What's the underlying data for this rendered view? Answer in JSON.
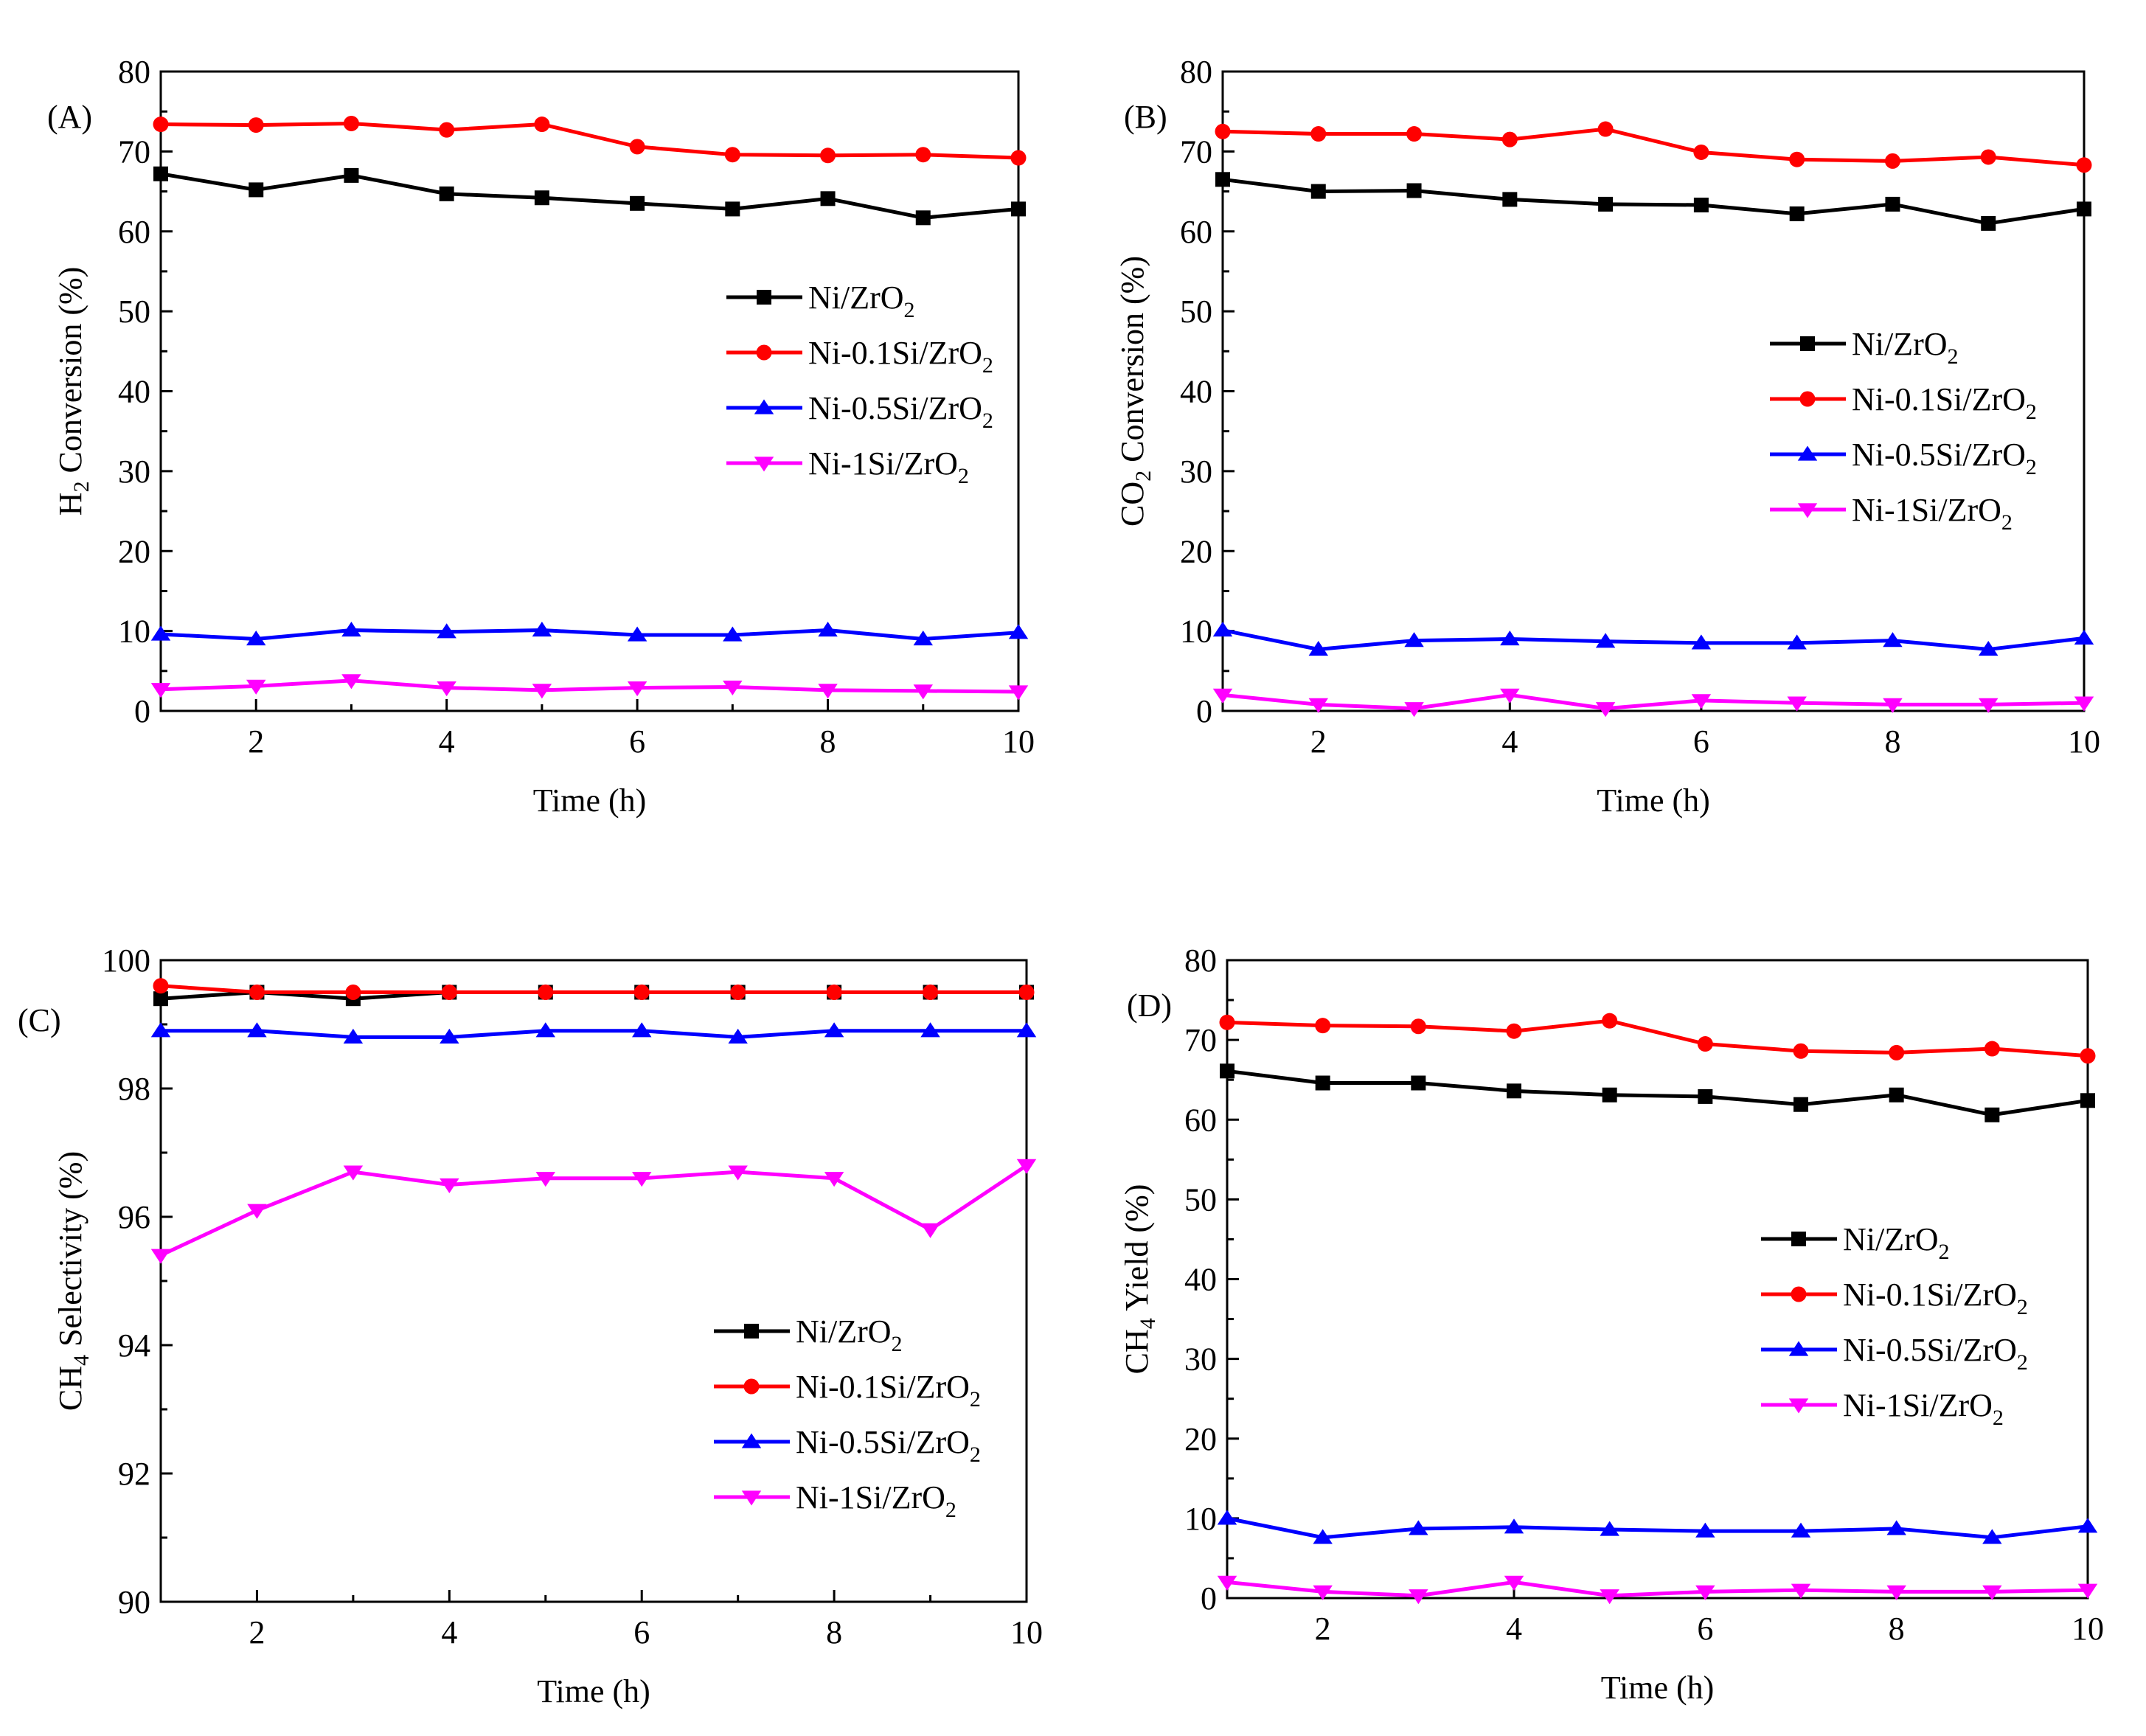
{
  "figure": {
    "series_styles": [
      {
        "name": "Ni/ZrO2",
        "color": "#000000",
        "marker": "square"
      },
      {
        "name": "Ni-0.1Si/ZrO2",
        "color": "#ff0000",
        "marker": "circle"
      },
      {
        "name": "Ni-0.5Si/ZrO2",
        "color": "#0000ff",
        "marker": "triangle-up"
      },
      {
        "name": "Ni-1Si/ZrO2",
        "color": "#ff00ff",
        "marker": "triangle-down"
      }
    ]
  },
  "chart_data": [
    {
      "type": "line",
      "panel_label": "(A)",
      "xlabel": "Time (h)",
      "ylabel": {
        "pre": "H",
        "sub": "2",
        "post": " Conversion (%)"
      },
      "xlim": [
        1,
        10
      ],
      "ylim": [
        0,
        80
      ],
      "xticks": [
        2,
        4,
        6,
        8,
        10
      ],
      "yticks": [
        0,
        10,
        20,
        30,
        40,
        50,
        60,
        70,
        80
      ],
      "x": [
        1,
        2,
        3,
        4,
        5,
        6,
        7,
        8,
        9,
        10
      ],
      "legend_position": "center-right",
      "series": [
        {
          "name": "Ni/ZrO2",
          "label": {
            "main": "Ni/ZrO",
            "sub": "2"
          },
          "values": [
            67.2,
            65.2,
            67.0,
            64.7,
            64.2,
            63.5,
            62.8,
            64.1,
            61.7,
            62.8
          ]
        },
        {
          "name": "Ni-0.1Si/ZrO2",
          "label": {
            "main": "Ni-0.1Si/ZrO",
            "sub": "2"
          },
          "values": [
            73.4,
            73.3,
            73.5,
            72.7,
            73.4,
            70.6,
            69.6,
            69.5,
            69.6,
            69.2
          ]
        },
        {
          "name": "Ni-0.5Si/ZrO2",
          "label": {
            "main": "Ni-0.5Si/ZrO",
            "sub": "2"
          },
          "values": [
            9.6,
            9.0,
            10.1,
            9.9,
            10.1,
            9.5,
            9.5,
            10.1,
            9.0,
            9.8
          ]
        },
        {
          "name": "Ni-1Si/ZrO2",
          "label": {
            "main": "Ni-1Si/ZrO",
            "sub": "2"
          },
          "values": [
            2.7,
            3.1,
            3.8,
            2.9,
            2.6,
            2.9,
            3.0,
            2.6,
            2.5,
            2.4
          ]
        }
      ]
    },
    {
      "type": "line",
      "panel_label": "(B)",
      "xlabel": "Time (h)",
      "ylabel": {
        "pre": "CO",
        "sub": "2",
        "post": " Conversion (%)"
      },
      "xlim": [
        1,
        10
      ],
      "ylim": [
        0,
        80
      ],
      "xticks": [
        2,
        4,
        6,
        8,
        10
      ],
      "yticks": [
        0,
        10,
        20,
        30,
        40,
        50,
        60,
        70,
        80
      ],
      "x": [
        1,
        2,
        3,
        4,
        5,
        6,
        7,
        8,
        9,
        10
      ],
      "legend_position": "center-right",
      "series": [
        {
          "name": "Ni/ZrO2",
          "label": {
            "main": "Ni/ZrO",
            "sub": "2"
          },
          "values": [
            66.5,
            65.0,
            65.1,
            64.0,
            63.4,
            63.3,
            62.2,
            63.4,
            61.0,
            62.8
          ]
        },
        {
          "name": "Ni-0.1Si/ZrO2",
          "label": {
            "main": "Ni-0.1Si/ZrO",
            "sub": "2"
          },
          "values": [
            72.5,
            72.2,
            72.2,
            71.5,
            72.8,
            69.9,
            69.0,
            68.8,
            69.3,
            68.3
          ]
        },
        {
          "name": "Ni-0.5Si/ZrO2",
          "label": {
            "main": "Ni-0.5Si/ZrO",
            "sub": "2"
          },
          "values": [
            10.1,
            7.7,
            8.8,
            9.0,
            8.7,
            8.5,
            8.5,
            8.8,
            7.7,
            9.1
          ]
        },
        {
          "name": "Ni-1Si/ZrO2",
          "label": {
            "main": "Ni-1Si/ZrO",
            "sub": "2"
          },
          "values": [
            2.0,
            0.8,
            0.3,
            2.0,
            0.3,
            1.3,
            1.0,
            0.8,
            0.8,
            1.0
          ]
        }
      ]
    },
    {
      "type": "line",
      "panel_label": "(C)",
      "xlabel": "Time (h)",
      "ylabel": {
        "pre": "CH",
        "sub": "4",
        "post": " Selectivity (%)"
      },
      "xlim": [
        1,
        10
      ],
      "ylim": [
        90,
        100
      ],
      "xticks": [
        2,
        4,
        6,
        8,
        10
      ],
      "yticks": [
        90,
        92,
        94,
        96,
        98,
        100
      ],
      "x": [
        1,
        2,
        3,
        4,
        5,
        6,
        7,
        8,
        9,
        10
      ],
      "legend_position": "bottom-right",
      "series": [
        {
          "name": "Ni/ZrO2",
          "label": {
            "main": "Ni/ZrO",
            "sub": "2"
          },
          "values": [
            99.4,
            99.5,
            99.4,
            99.5,
            99.5,
            99.5,
            99.5,
            99.5,
            99.5,
            99.5
          ]
        },
        {
          "name": "Ni-0.1Si/ZrO2",
          "label": {
            "main": "Ni-0.1Si/ZrO",
            "sub": "2"
          },
          "values": [
            99.6,
            99.5,
            99.5,
            99.5,
            99.5,
            99.5,
            99.5,
            99.5,
            99.5,
            99.5
          ]
        },
        {
          "name": "Ni-0.5Si/ZrO2",
          "label": {
            "main": "Ni-0.5Si/ZrO",
            "sub": "2"
          },
          "values": [
            98.9,
            98.9,
            98.8,
            98.8,
            98.9,
            98.9,
            98.8,
            98.9,
            98.9,
            98.9
          ]
        },
        {
          "name": "Ni-1Si/ZrO2",
          "label": {
            "main": "Ni-1Si/ZrO",
            "sub": "2"
          },
          "values": [
            95.4,
            96.1,
            96.7,
            96.5,
            96.6,
            96.6,
            96.7,
            96.6,
            95.8,
            96.8
          ]
        }
      ]
    },
    {
      "type": "line",
      "panel_label": "(D)",
      "xlabel": "Time (h)",
      "ylabel": {
        "pre": "CH",
        "sub": "4",
        "post": " Yield (%)"
      },
      "xlim": [
        1,
        10
      ],
      "ylim": [
        0,
        80
      ],
      "xticks": [
        2,
        4,
        6,
        8,
        10
      ],
      "yticks": [
        0,
        10,
        20,
        30,
        40,
        50,
        60,
        70,
        80
      ],
      "x": [
        1,
        2,
        3,
        4,
        5,
        6,
        7,
        8,
        9,
        10
      ],
      "legend_position": "center-right",
      "series": [
        {
          "name": "Ni/ZrO2",
          "label": {
            "main": "Ni/ZrO",
            "sub": "2"
          },
          "values": [
            66.1,
            64.6,
            64.6,
            63.6,
            63.1,
            62.9,
            61.9,
            63.1,
            60.6,
            62.4
          ]
        },
        {
          "name": "Ni-0.1Si/ZrO2",
          "label": {
            "main": "Ni-0.1Si/ZrO",
            "sub": "2"
          },
          "values": [
            72.2,
            71.8,
            71.7,
            71.1,
            72.4,
            69.5,
            68.6,
            68.4,
            68.9,
            68.0
          ]
        },
        {
          "name": "Ni-0.5Si/ZrO2",
          "label": {
            "main": "Ni-0.5Si/ZrO",
            "sub": "2"
          },
          "values": [
            10.0,
            7.6,
            8.7,
            8.9,
            8.6,
            8.4,
            8.4,
            8.7,
            7.6,
            9.0
          ]
        },
        {
          "name": "Ni-1Si/ZrO2",
          "label": {
            "main": "Ni-1Si/ZrO",
            "sub": "2"
          },
          "values": [
            2.0,
            0.8,
            0.3,
            2.0,
            0.3,
            0.8,
            1.0,
            0.8,
            0.8,
            1.0
          ]
        }
      ]
    }
  ]
}
